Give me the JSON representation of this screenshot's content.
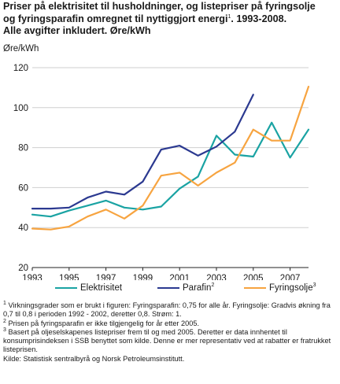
{
  "title_lines": [
    "Priser på elektrisitet til husholdninger, og listepriser på fyringsolje",
    "og fyringsparafin omregnet til nyttiggjort energi",
    ". 1993-2008.",
    "Alle avgifter inkludert. Øre/kWh"
  ],
  "title_sup": "1",
  "notes": {
    "n1_sup": "1",
    "n1": " Virkningsgrader som er brukt i figuren:  Fyringsparafin: 0,75 for alle år. Fyringsolje: Gradvis økning fra 0,7 til 0,8 i perioden 1992 - 2002, deretter 0,8. Strøm: 1.",
    "n2_sup": "2",
    "n2": " Prisen på fyringsparafin er ikke tilgjengelig for år etter 2005.",
    "n3_sup": "3",
    "n3": " Basert på oljeselskapenes listepriser frem til og med 2005. Deretter er data innhentet til konsumprisindeksen i SSB benyttet som kilde. Denne er mer representativ ved at rabatter er fratrukket listeprisen.",
    "source": "Kilde: Statistisk sentralbyrå og Norsk Petroleumsinstitutt."
  },
  "chart_data": {
    "type": "line",
    "ylabel": "Øre/kWh",
    "ylim": [
      20,
      120
    ],
    "yticks": [
      20,
      40,
      60,
      80,
      100,
      120
    ],
    "xlim": [
      1993,
      2008
    ],
    "xtick_labels": [
      "1993",
      "1995",
      "1997",
      "1999",
      "2001",
      "2003",
      "2005",
      "2007"
    ],
    "xtick_values": [
      1993,
      1995,
      1997,
      1999,
      2001,
      2003,
      2005,
      2007
    ],
    "grid": "horizontal",
    "legend_position": "bottom",
    "x": [
      1993,
      1994,
      1995,
      1996,
      1997,
      1998,
      1999,
      2000,
      2001,
      2002,
      2003,
      2004,
      2005,
      2006,
      2007,
      2008
    ],
    "series": [
      {
        "name": "Elektrisitet",
        "sup": "",
        "color": "#1aa3a3",
        "values": [
          46.5,
          45.5,
          48.5,
          51,
          53.5,
          50,
          49,
          50.5,
          59.5,
          65.5,
          86,
          76.5,
          75.5,
          92.5,
          75,
          89
        ]
      },
      {
        "name": "Parafin",
        "sup": "2",
        "color": "#2b3990",
        "values": [
          49.5,
          49.5,
          50,
          55,
          58,
          56.5,
          63,
          79,
          81,
          76,
          80.5,
          88,
          106.5,
          null,
          null,
          null
        ]
      },
      {
        "name": "Fyringsolje",
        "sup": "3",
        "color": "#f7a440",
        "values": [
          39.5,
          39,
          40.5,
          45.5,
          49,
          44.5,
          51,
          66,
          67.5,
          61,
          67.5,
          72.5,
          89,
          83.5,
          83.5,
          110.5
        ]
      }
    ]
  }
}
